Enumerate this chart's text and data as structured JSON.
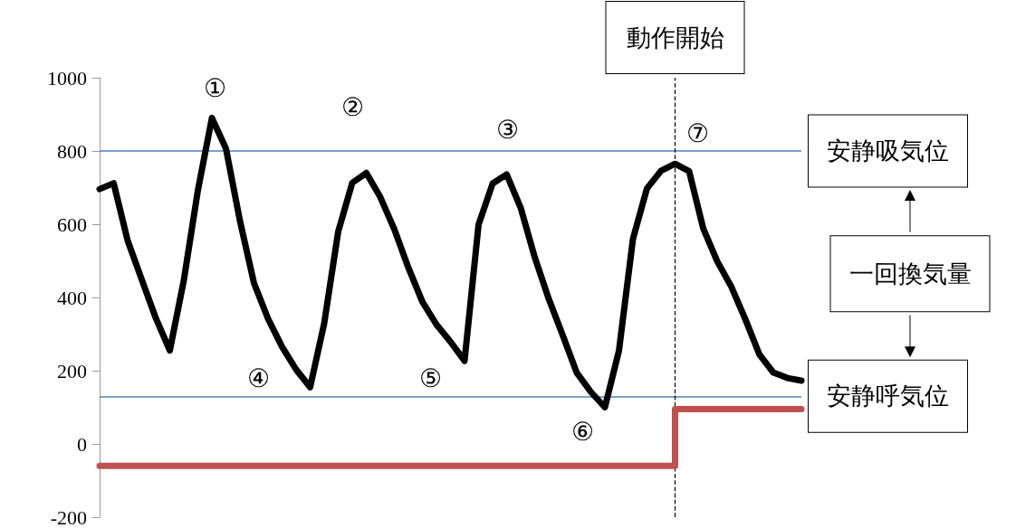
{
  "chart_data": {
    "type": "line",
    "ylim": [
      -200,
      1000
    ],
    "yticks": [
      -200,
      0,
      200,
      400,
      600,
      800,
      1000
    ],
    "grid": false,
    "marker": "none",
    "categories": [
      null,
      null,
      null,
      null,
      null,
      null,
      null,
      null,
      null,
      null,
      null,
      null,
      null,
      null,
      null,
      null,
      null,
      null,
      null,
      null,
      null,
      null,
      null,
      null,
      null,
      null,
      null,
      null,
      null,
      null,
      null,
      null,
      null,
      null,
      null,
      null,
      null,
      null,
      null,
      null,
      null,
      null,
      null,
      null,
      null,
      null,
      null,
      null,
      null,
      null,
      null
    ],
    "series": [
      {
        "color": "#000000",
        "values": [
          696,
          712,
          555,
          449,
          344,
          255,
          447,
          692,
          890,
          807,
          609,
          439,
          342,
          265,
          203,
          155,
          329,
          580,
          713,
          740,
          674,
          586,
          481,
          388,
          326,
          279,
          227,
          599,
          711,
          736,
          645,
          510,
          396,
          296,
          194,
          142,
          100,
          254,
          560,
          698,
          746,
          765,
          745,
          589,
          499,
          430,
          341,
          245,
          195,
          180,
          173
        ]
      },
      {
        "type": "step",
        "color": "#c0504d",
        "values": [
          -60,
          -60,
          -60,
          -60,
          -60,
          -60,
          -60,
          -60,
          -60,
          -60,
          -60,
          -60,
          -60,
          -60,
          -60,
          -60,
          -60,
          -60,
          -60,
          -60,
          -60,
          -60,
          -60,
          -60,
          -60,
          -60,
          -60,
          -60,
          -60,
          -60,
          -60,
          -60,
          -60,
          -60,
          -60,
          -60,
          -60,
          -60,
          -60,
          -60,
          -60,
          95,
          95,
          95,
          95,
          95,
          95,
          95,
          95,
          95,
          95
        ]
      }
    ],
    "ref_lines": [
      {
        "axis": "y",
        "value": 800,
        "label": "安静吸気位",
        "color": "#4f81bd",
        "line_style": "solid"
      },
      {
        "axis": "y",
        "value": 130,
        "label": "安静呼気位",
        "color": "#4f81bd",
        "line_style": "solid"
      }
    ],
    "annotations": [
      "①",
      "②",
      "③",
      "④",
      "⑤",
      "⑥",
      "⑦",
      "一回換気量",
      "動作開始"
    ]
  }
}
